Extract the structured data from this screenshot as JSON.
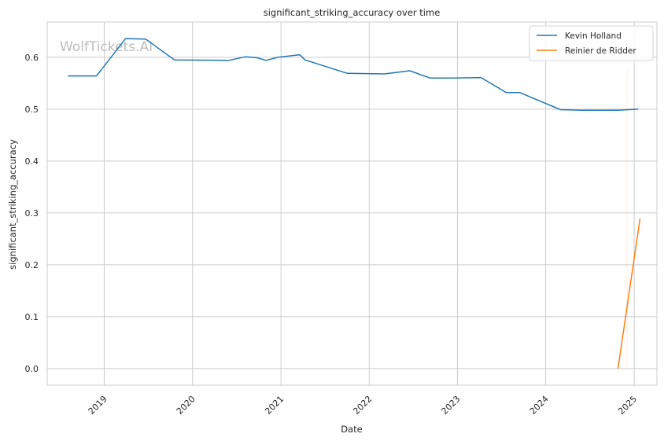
{
  "chart_data": {
    "type": "line",
    "title": "significant_striking_accuracy over time",
    "xlabel": "Date",
    "ylabel": "significant_striking_accuracy",
    "watermark": "WolfTickets.AI",
    "x_ticks": [
      "2019",
      "2020",
      "2021",
      "2022",
      "2023",
      "2024",
      "2025"
    ],
    "y_ticks": [
      "0.0",
      "0.1",
      "0.2",
      "0.3",
      "0.4",
      "0.5",
      "0.6"
    ],
    "xlim": [
      "2018-05-10",
      "2025-04-05"
    ],
    "ylim": [
      -0.032,
      0.668
    ],
    "grid": true,
    "legend_position": "top-right",
    "series": [
      {
        "name": "Kevin Holland",
        "color": "#1f77b4",
        "points": [
          [
            "2018-08-04",
            0.564
          ],
          [
            "2018-11-30",
            0.564
          ],
          [
            "2019-03-30",
            0.636
          ],
          [
            "2019-06-22",
            0.635
          ],
          [
            "2019-10-18",
            0.595
          ],
          [
            "2020-05-30",
            0.594
          ],
          [
            "2020-08-08",
            0.601
          ],
          [
            "2020-09-25",
            0.599
          ],
          [
            "2020-10-31",
            0.594
          ],
          [
            "2020-12-19",
            0.6
          ],
          [
            "2021-03-20",
            0.605
          ],
          [
            "2021-04-10",
            0.595
          ],
          [
            "2021-10-02",
            0.569
          ],
          [
            "2022-03-05",
            0.568
          ],
          [
            "2022-06-18",
            0.574
          ],
          [
            "2022-09-10",
            0.56
          ],
          [
            "2022-12-17",
            0.56
          ],
          [
            "2023-04-08",
            0.561
          ],
          [
            "2023-07-22",
            0.532
          ],
          [
            "2023-09-16",
            0.532
          ],
          [
            "2024-03-02",
            0.499
          ],
          [
            "2024-06-01",
            0.498
          ],
          [
            "2024-10-26",
            0.498
          ],
          [
            "2025-01-18",
            0.5
          ]
        ]
      },
      {
        "name": "Reinier de Ridder",
        "color": "#ff7f0e",
        "points": [
          [
            "2024-10-26",
            0.0
          ],
          [
            "2025-01-25",
            0.289
          ]
        ]
      }
    ]
  }
}
